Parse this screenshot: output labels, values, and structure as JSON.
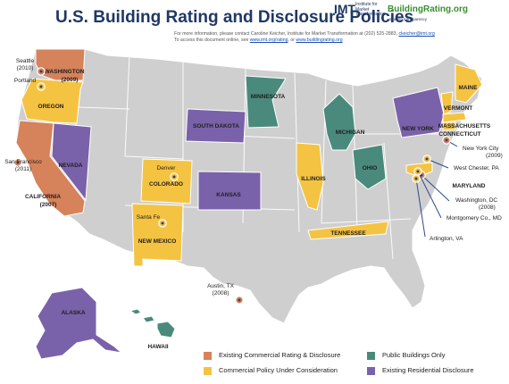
{
  "header": {
    "title": "U.S. Building Rating and Disclosure Policies",
    "note_line1_prefix": "For more information, please contact Caroline Keicher, Institute for Market Transformation at (202) 525-2883,",
    "note_line1_link": "ckeicher@imt.org",
    "note_line2_prefix": "To access this document online, see",
    "note_line2_link1": "www.imt.org/rating",
    "note_line2_mid": ", or",
    "note_line2_link2": "www.buildingrating.org",
    "imt_logo": "IMT",
    "imt_sub": "Institute for Market Transformation",
    "br_logo": "BuildingRating.org",
    "br_sub": "sharing transparency"
  },
  "colors": {
    "commercial": "#d6825a",
    "consideration": "#f5c342",
    "public": "#4a8a7c",
    "residential": "#7a62aa",
    "none": "#cfcfcf"
  },
  "states": [
    {
      "name": "WASHINGTON",
      "label": "WASHINGTON",
      "year": "(2009)",
      "category": "commercial"
    },
    {
      "name": "OREGON",
      "label": "OREGON",
      "category": "consideration"
    },
    {
      "name": "CALIFORNIA",
      "label": "CALIFORNIA",
      "year": "(2007)",
      "category": "commercial"
    },
    {
      "name": "NEVADA",
      "label": "NEVADA",
      "category": "residential"
    },
    {
      "name": "COLORADO",
      "label": "COLORADO",
      "category": "consideration"
    },
    {
      "name": "NEW MEXICO",
      "label": "NEW MEXICO",
      "category": "consideration"
    },
    {
      "name": "SOUTH DAKOTA",
      "label": "SOUTH DAKOTA",
      "category": "residential"
    },
    {
      "name": "KANSAS",
      "label": "KANSAS",
      "category": "residential"
    },
    {
      "name": "MINNESOTA",
      "label": "MINNESOTA",
      "category": "public"
    },
    {
      "name": "MICHIGAN",
      "label": "MICHIGAN",
      "category": "public"
    },
    {
      "name": "OHIO",
      "label": "OHIO",
      "category": "public"
    },
    {
      "name": "ILLINOIS",
      "label": "ILLINOIS",
      "category": "consideration"
    },
    {
      "name": "TENNESSEE",
      "label": "TENNESSEE",
      "category": "consideration"
    },
    {
      "name": "NEW YORK",
      "label": "NEW YORK",
      "category": "residential"
    },
    {
      "name": "VERMONT",
      "label": "VERMONT",
      "category": "consideration"
    },
    {
      "name": "MAINE",
      "label": "MAINE",
      "category": "consideration"
    },
    {
      "name": "MASSACHUSETTS",
      "label": "MASSACHUSETTS",
      "category": "consideration"
    },
    {
      "name": "CONNECTICUT",
      "label": "CONNECTICUT",
      "category": "consideration"
    },
    {
      "name": "MARYLAND",
      "label": "MARYLAND",
      "category": "consideration"
    },
    {
      "name": "ALASKA",
      "label": "ALASKA",
      "category": "residential"
    },
    {
      "name": "HAWAII",
      "label": "HAWAII",
      "category": "public"
    }
  ],
  "cities": [
    {
      "name": "Seattle (2010)",
      "category": "commercial"
    },
    {
      "name": "Portland",
      "category": "consideration"
    },
    {
      "name": "San Francisco (2011)",
      "category": "commercial"
    },
    {
      "name": "Denver",
      "category": "consideration"
    },
    {
      "name": "Santa Fe",
      "category": "consideration"
    },
    {
      "name": "Austin, TX (2008)",
      "category": "commercial"
    },
    {
      "name": "New York City (2009)",
      "category": "commercial"
    },
    {
      "name": "West Chester, PA",
      "category": "consideration"
    },
    {
      "name": "Washington, DC (2008)",
      "category": "commercial"
    },
    {
      "name": "Montgomery Co., MD",
      "category": "consideration"
    },
    {
      "name": "Arlington, VA",
      "category": "consideration"
    }
  ],
  "legend": [
    {
      "label": "Existing Commercial Rating & Disclosure",
      "category": "commercial"
    },
    {
      "label": "Public Buildings Only",
      "category": "public"
    },
    {
      "label": "Commercial Policy Under Consideration",
      "category": "consideration"
    },
    {
      "label": "Existing Residential Disclosure",
      "category": "residential"
    }
  ]
}
